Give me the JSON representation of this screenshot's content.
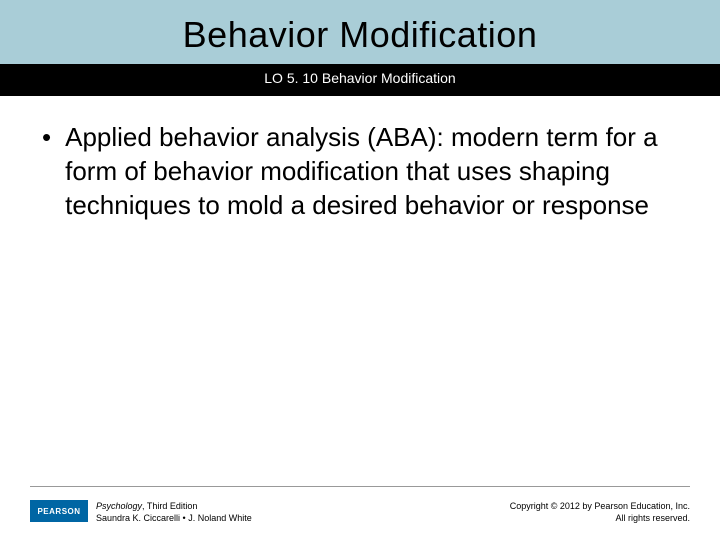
{
  "header": {
    "title": "Behavior Modification",
    "subtitle": "LO 5. 10 Behavior Modification",
    "band_color": "#a9cdd7",
    "strip_color": "#000000",
    "title_color": "#000000",
    "subtitle_color": "#ffffff",
    "title_fontsize": 36,
    "subtitle_fontsize": 14
  },
  "body": {
    "bullets": [
      "Applied behavior analysis (ABA): modern term for a form of behavior modification that uses shaping techniques to mold a desired behavior or response"
    ],
    "fontsize": 26,
    "text_color": "#000000"
  },
  "footer": {
    "logo_text": "PEARSON",
    "logo_bg": "#0066a4",
    "logo_fg": "#ffffff",
    "book_title": "Psychology",
    "book_edition": ", Third Edition",
    "authors": "Saundra K. Ciccarelli • J. Noland White",
    "copyright_line1": "Copyright © 2012 by Pearson Education, Inc.",
    "copyright_line2": "All rights reserved.",
    "fontsize": 9,
    "line_color": "#999999"
  },
  "background_color": "#ffffff"
}
